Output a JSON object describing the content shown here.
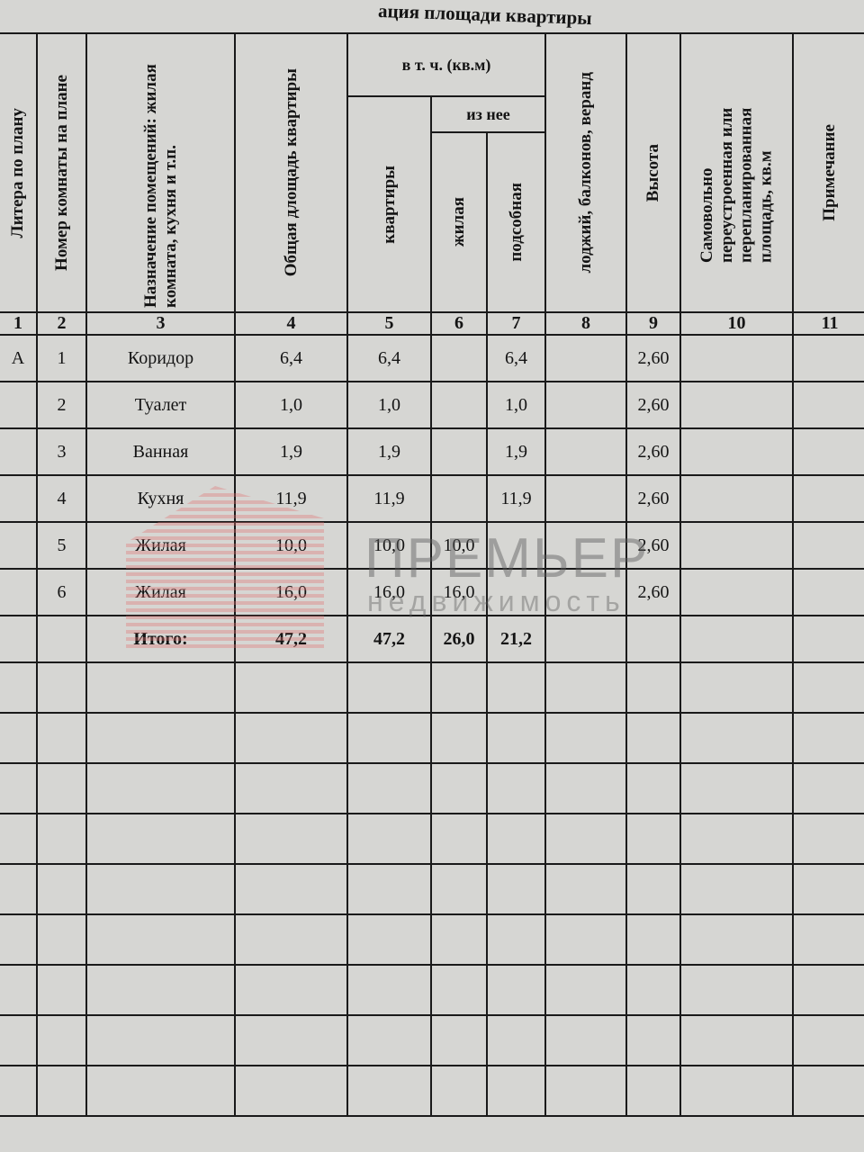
{
  "title": "ация площади квартиры",
  "headers": {
    "c1": "Литера по плану",
    "c2": "Номер комнаты на плане",
    "c3": "Назначение помещений: жилая комната, кухня и т.п.",
    "c4": "Общая длощадь квартиры",
    "group": "в т. ч. (кв.м)",
    "c5": "квартиры",
    "subgroup": "из нее",
    "c6": "жилая",
    "c7": "подсобная",
    "c8": "лоджий, балконов, веранд",
    "c9": "Высота",
    "c10": "Самовольно переустроенная или перепланированная площадь, кв.м",
    "c11": "Примечание"
  },
  "column_numbers": [
    "1",
    "2",
    "3",
    "4",
    "5",
    "6",
    "7",
    "8",
    "9",
    "10",
    "11"
  ],
  "rows": [
    [
      "А",
      "1",
      "Коридор",
      "6,4",
      "6,4",
      "",
      "6,4",
      "",
      "2,60",
      "",
      ""
    ],
    [
      "",
      "2",
      "Туалет",
      "1,0",
      "1,0",
      "",
      "1,0",
      "",
      "2,60",
      "",
      ""
    ],
    [
      "",
      "3",
      "Ванная",
      "1,9",
      "1,9",
      "",
      "1,9",
      "",
      "2,60",
      "",
      ""
    ],
    [
      "",
      "4",
      "Кухня",
      "11,9",
      "11,9",
      "",
      "11,9",
      "",
      "2,60",
      "",
      ""
    ],
    [
      "",
      "5",
      "Жилая",
      "10,0",
      "10,0",
      "10,0",
      "",
      "",
      "2,60",
      "",
      ""
    ],
    [
      "",
      "6",
      "Жилая",
      "16,0",
      "16,0",
      "16,0",
      "",
      "",
      "2,60",
      "",
      ""
    ]
  ],
  "total": [
    "",
    "",
    "Итого:",
    "47,2",
    "47,2",
    "26,0",
    "21,2",
    "",
    "",
    "",
    ""
  ],
  "watermark": {
    "main": "ПРЕМЬЕР",
    "sub": "недвижимость"
  }
}
